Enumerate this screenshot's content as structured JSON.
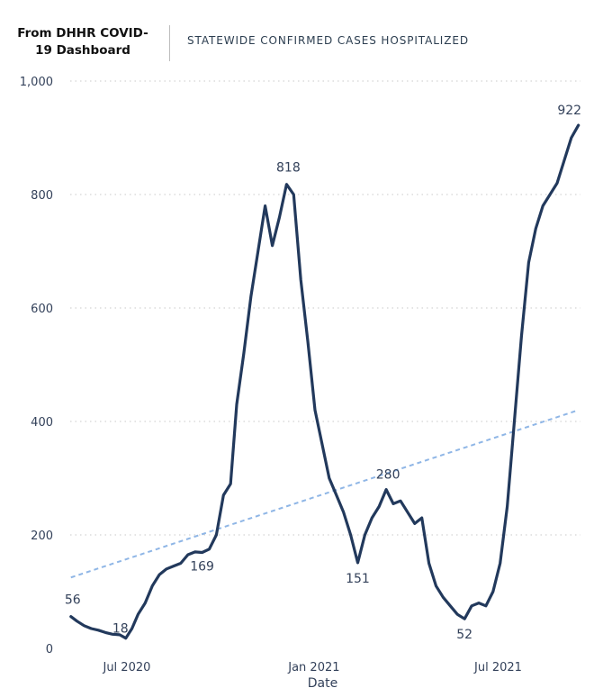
{
  "header": {
    "source_title": "From DHHR COVID-19 Dashboard",
    "chart_title": "STATEWIDE CONFIRMED CASES HOSPITALIZED"
  },
  "colors": {
    "line": "#22395c",
    "trend": "#8fb6e6",
    "grid": "#c8c8c8",
    "text": "#33415a"
  },
  "chart_data": {
    "type": "line",
    "title": "STATEWIDE CONFIRMED CASES HOSPITALIZED",
    "xlabel": "Date",
    "ylabel": "",
    "ylim": [
      0,
      1000
    ],
    "xlim": [
      "2020-05-01",
      "2021-09-20"
    ],
    "grid": true,
    "y_ticks": [
      0,
      200,
      400,
      600,
      800,
      1000
    ],
    "y_tick_labels": [
      "0",
      "200",
      "400",
      "600",
      "800",
      "1,000"
    ],
    "x_ticks": [
      "2020-07-01",
      "2021-01-01",
      "2021-07-01"
    ],
    "x_tick_labels": [
      "Jul 2020",
      "Jan 2021",
      "Jul 2021"
    ],
    "series": [
      {
        "x": [
          "2020-05-07",
          "2020-05-13",
          "2020-05-20",
          "2020-05-27",
          "2020-06-03",
          "2020-06-10",
          "2020-06-17",
          "2020-06-24",
          "2020-06-30",
          "2020-07-06",
          "2020-07-12",
          "2020-07-19",
          "2020-07-26",
          "2020-08-02",
          "2020-08-09",
          "2020-08-16",
          "2020-08-23",
          "2020-08-30",
          "2020-09-06",
          "2020-09-13",
          "2020-09-20",
          "2020-09-27",
          "2020-10-04",
          "2020-10-11",
          "2020-10-17",
          "2020-10-24",
          "2020-10-31",
          "2020-11-07",
          "2020-11-14",
          "2020-11-21",
          "2020-11-28",
          "2020-12-05",
          "2020-12-12",
          "2020-12-19",
          "2020-12-26",
          "2021-01-02",
          "2021-01-09",
          "2021-01-16",
          "2021-01-23",
          "2021-01-30",
          "2021-02-06",
          "2021-02-13",
          "2021-02-20",
          "2021-02-27",
          "2021-03-06",
          "2021-03-13",
          "2021-03-20",
          "2021-03-27",
          "2021-04-03",
          "2021-04-10",
          "2021-04-17",
          "2021-04-24",
          "2021-05-01",
          "2021-05-08",
          "2021-05-15",
          "2021-05-22",
          "2021-05-29",
          "2021-06-05",
          "2021-06-12",
          "2021-06-19",
          "2021-06-26",
          "2021-07-03",
          "2021-07-10",
          "2021-07-17",
          "2021-07-24",
          "2021-07-31",
          "2021-08-07",
          "2021-08-14",
          "2021-08-21",
          "2021-08-28",
          "2021-09-04",
          "2021-09-11",
          "2021-09-18"
        ],
        "values": [
          56,
          48,
          40,
          35,
          32,
          28,
          25,
          24,
          18,
          35,
          60,
          80,
          110,
          130,
          140,
          145,
          150,
          165,
          170,
          169,
          175,
          200,
          270,
          290,
          430,
          520,
          620,
          700,
          780,
          710,
          760,
          818,
          800,
          650,
          540,
          420,
          360,
          300,
          270,
          240,
          200,
          151,
          200,
          230,
          250,
          280,
          255,
          260,
          240,
          220,
          230,
          150,
          110,
          90,
          75,
          60,
          52,
          75,
          80,
          75,
          100,
          150,
          250,
          400,
          550,
          680,
          740,
          780,
          800,
          820,
          860,
          900,
          922
        ],
        "point_labels": [
          {
            "x": "2020-05-07",
            "value": 56,
            "text": "56"
          },
          {
            "x": "2020-06-30",
            "value": 18,
            "text": "18"
          },
          {
            "x": "2020-09-13",
            "value": 169,
            "text": "169"
          },
          {
            "x": "2020-12-05",
            "value": 818,
            "text": "818"
          },
          {
            "x": "2021-02-13",
            "value": 151,
            "text": "151"
          },
          {
            "x": "2021-03-13",
            "value": 280,
            "text": "280"
          },
          {
            "x": "2021-05-29",
            "value": 52,
            "text": "52"
          },
          {
            "x": "2021-09-18",
            "value": 922,
            "text": "922"
          }
        ]
      }
    ],
    "trendline": {
      "style": "dashed",
      "x": [
        "2020-05-07",
        "2021-09-18"
      ],
      "values": [
        125,
        420
      ]
    }
  }
}
